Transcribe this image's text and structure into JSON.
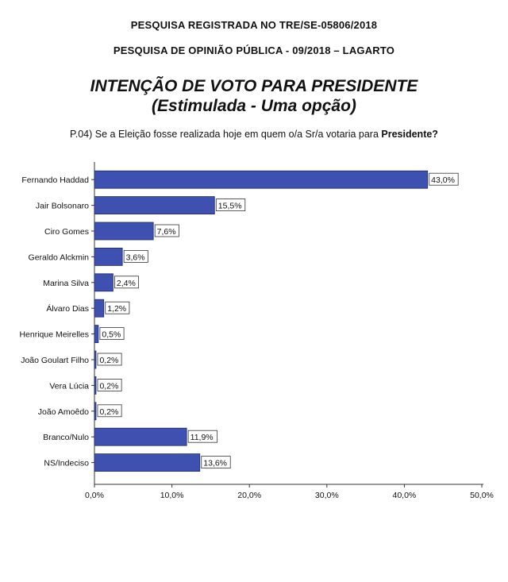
{
  "header": {
    "line1": "PESQUISA REGISTRADA NO TRE/SE-05806/2018",
    "line2": "PESQUISA DE OPINIÃO PÚBLICA - 09/2018 – LAGARTO"
  },
  "title": {
    "line1": "INTENÇÃO DE VOTO PARA PRESIDENTE",
    "line2": "(Estimulada - Uma opção)"
  },
  "question": {
    "text": "P.04) Se a Eleição fosse realizada hoje em quem o/a Sr/a votaria para ",
    "bold": "Presidente?"
  },
  "chart_data": {
    "type": "bar",
    "orientation": "horizontal",
    "categories": [
      "Fernando Haddad",
      "Jair Bolsonaro",
      "Ciro Gomes",
      "Geraldo Alckmin",
      "Marina Silva",
      "Álvaro Dias",
      "Henrique Meirelles",
      "João Goulart Filho",
      "Vera Lúcia",
      "João Amoêdo",
      "Branco/Nulo",
      "NS/Indeciso"
    ],
    "values": [
      43.0,
      15.5,
      7.6,
      3.6,
      2.4,
      1.2,
      0.5,
      0.2,
      0.2,
      0.2,
      11.9,
      13.6
    ],
    "data_labels": [
      "43,0%",
      "15,5%",
      "7,6%",
      "3,6%",
      "2,4%",
      "1,2%",
      "0,5%",
      "0,2%",
      "0,2%",
      "0,2%",
      "11,9%",
      "13,6%"
    ],
    "xlim": [
      0,
      50
    ],
    "xticks": [
      "0,0%",
      "10,0%",
      "20,0%",
      "30,0%",
      "40,0%",
      "50,0%"
    ],
    "bar_color": "#3f51b0",
    "grid": false
  }
}
